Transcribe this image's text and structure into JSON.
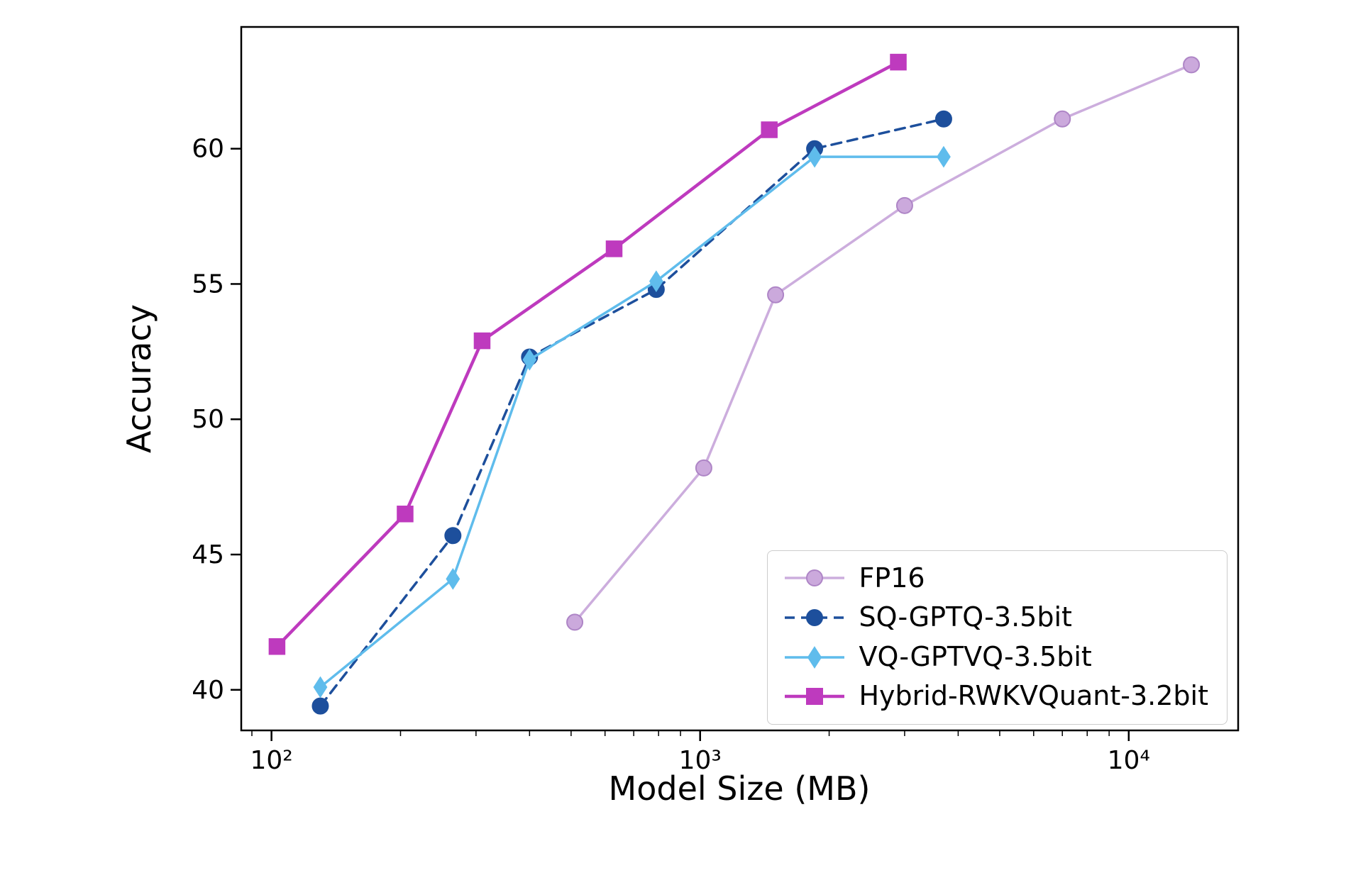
{
  "chart_data": {
    "type": "line",
    "title": "",
    "xlabel": "Model Size (MB)",
    "ylabel": "Accuracy",
    "x_scale": "log",
    "xlim": [
      85,
      18000
    ],
    "ylim": [
      38.5,
      64.5
    ],
    "y_ticks": [
      40,
      45,
      50,
      55,
      60
    ],
    "x_major_ticks": [
      {
        "value": 100,
        "label": "10²"
      },
      {
        "value": 1000,
        "label": "10³"
      },
      {
        "value": 10000,
        "label": "10⁴"
      }
    ],
    "grid": false,
    "legend_position": "lower right",
    "series": [
      {
        "name": "FP16",
        "color": "#C7A4D9",
        "marker_fill": "#CBA9DC",
        "marker_edge": "#AE85C6",
        "line_style": "solid",
        "line_width": 3.5,
        "line_opacity": 0.9,
        "marker": "circle",
        "x": [
          510,
          1020,
          1500,
          3000,
          7000,
          14000
        ],
        "y": [
          42.5,
          48.2,
          54.6,
          57.9,
          61.1,
          63.1
        ]
      },
      {
        "name": "SQ-GPTQ-3.5bit",
        "color": "#1D4F9C",
        "marker_fill": "#1D4F9C",
        "marker_edge": "#1D4F9C",
        "line_style": "dashed",
        "line_width": 3.5,
        "line_opacity": 1,
        "marker": "circle",
        "x": [
          130,
          265,
          400,
          790,
          1850,
          3700
        ],
        "y": [
          39.4,
          45.7,
          52.3,
          54.8,
          60.0,
          61.1
        ]
      },
      {
        "name": "VQ-GPTVQ-3.5bit",
        "color": "#5FBCEC",
        "marker_fill": "#5FBCEC",
        "marker_edge": "#5FBCEC",
        "line_style": "solid",
        "line_width": 3.5,
        "line_opacity": 1,
        "marker": "diamond",
        "x": [
          130,
          265,
          400,
          790,
          1850,
          3700
        ],
        "y": [
          40.1,
          44.1,
          52.2,
          55.1,
          59.7,
          59.7
        ]
      },
      {
        "name": "Hybrid-RWKVQuant-3.2bit",
        "color": "#BE3ABE",
        "marker_fill": "#BE3ABE",
        "marker_edge": "#BE3ABE",
        "line_style": "solid",
        "line_width": 4.5,
        "line_opacity": 1,
        "marker": "square",
        "x": [
          103,
          205,
          310,
          630,
          1450,
          2900
        ],
        "y": [
          41.6,
          46.5,
          52.9,
          56.3,
          60.7,
          63.2
        ]
      }
    ]
  }
}
